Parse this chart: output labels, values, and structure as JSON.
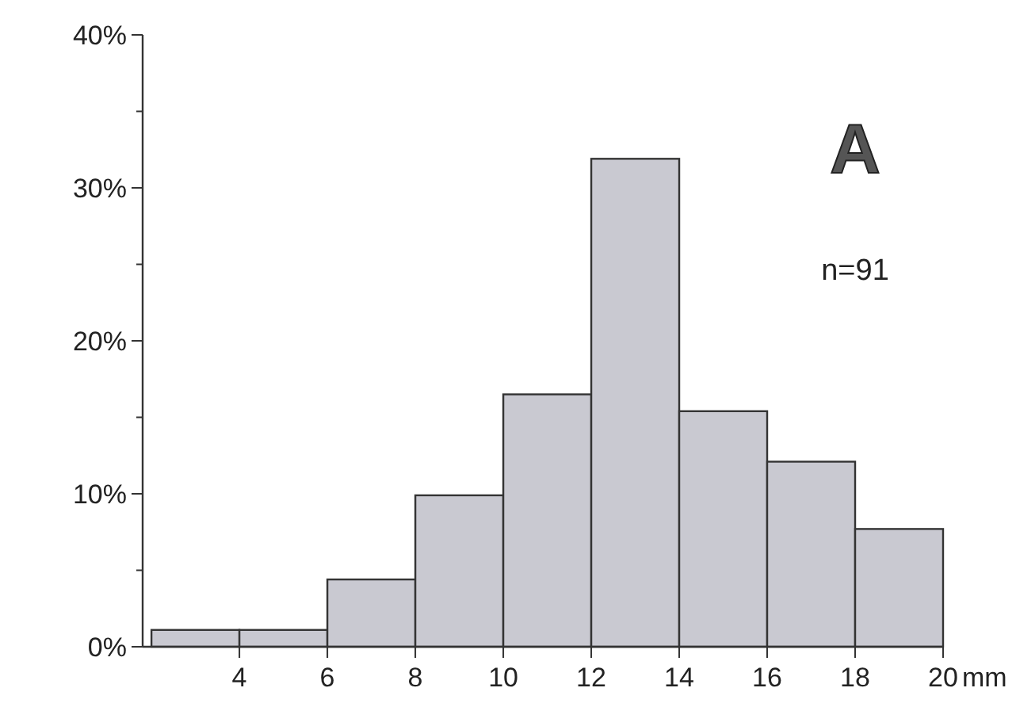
{
  "chart_data": {
    "type": "histogram",
    "xlabel": "mm",
    "bins": [
      2,
      4,
      6,
      8,
      10,
      12,
      14,
      16,
      18,
      20
    ],
    "values": [
      1.1,
      1.1,
      4.4,
      9.9,
      16.5,
      31.9,
      15.4,
      12.1,
      7.7
    ],
    "color": "#c9c9d1",
    "xlim": [
      1.8,
      20
    ],
    "xticks": [
      4,
      6,
      8,
      10,
      12,
      14,
      16,
      18,
      20
    ],
    "ylim": [
      0,
      40
    ],
    "yticks": [
      {
        "value": 0,
        "label": "0%"
      },
      {
        "value": 5,
        "label": null
      },
      {
        "value": 10,
        "label": "10%"
      },
      {
        "value": 15,
        "label": null
      },
      {
        "value": 20,
        "label": "20%"
      },
      {
        "value": 25,
        "label": null
      },
      {
        "value": 30,
        "label": "30%"
      },
      {
        "value": 35,
        "label": null
      },
      {
        "value": 40,
        "label": "40%"
      }
    ],
    "annotations": [
      "A",
      "n=91"
    ],
    "grid": false
  }
}
